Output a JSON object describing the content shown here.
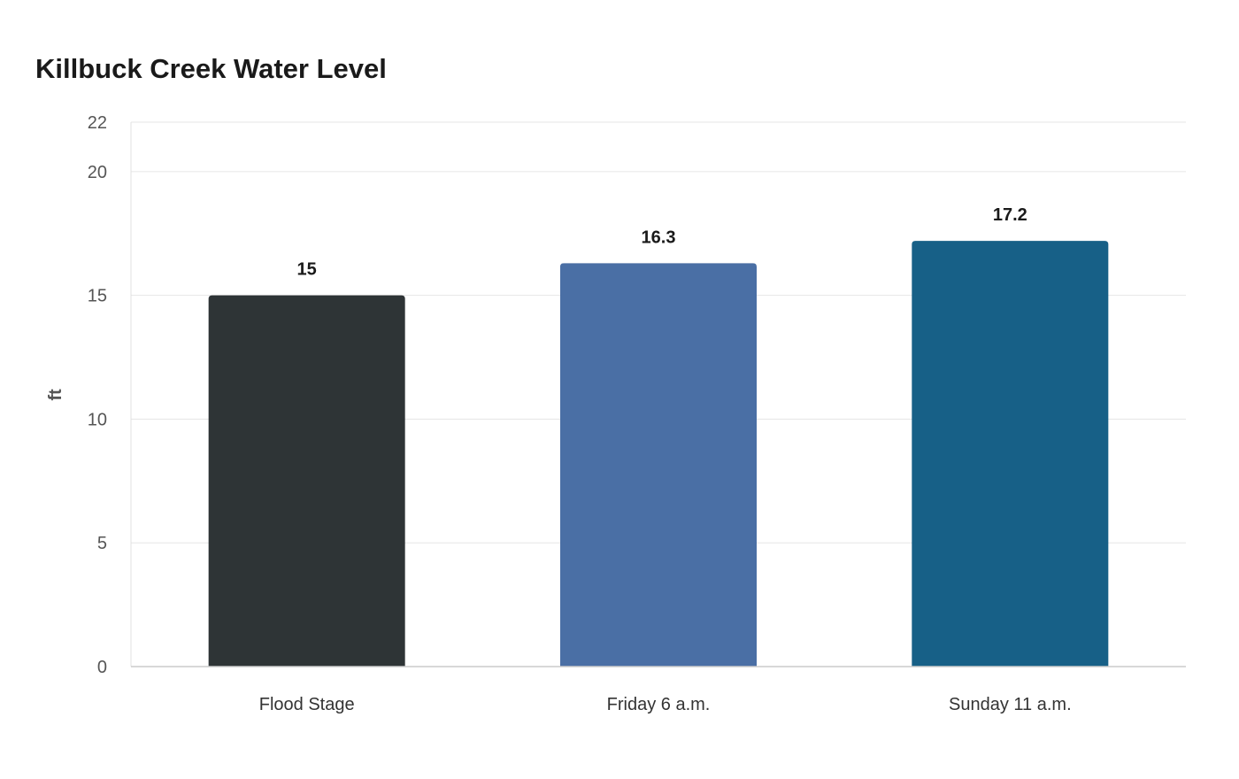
{
  "chart_data": {
    "type": "bar",
    "title": "Killbuck Creek Water Level",
    "xlabel": "",
    "ylabel": "ft",
    "categories": [
      "Flood Stage",
      "Friday 6 a.m.",
      "Sunday 11 a.m."
    ],
    "values": [
      15,
      16.3,
      17.2
    ],
    "data_labels": [
      "15",
      "16.3",
      "17.2"
    ],
    "colors": [
      "#2e3436",
      "#4a6fa5",
      "#176087"
    ],
    "ylim": [
      0,
      22
    ],
    "yticks": [
      0,
      5,
      10,
      15,
      20,
      22
    ],
    "grid": true,
    "legend": "none"
  }
}
